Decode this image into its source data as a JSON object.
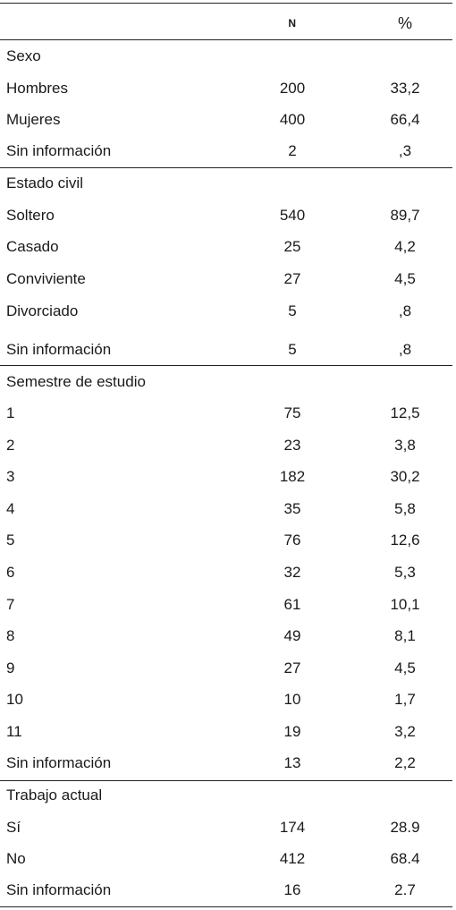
{
  "header": {
    "n": "N",
    "pct": "%"
  },
  "sections": [
    {
      "title": "Sexo",
      "rows": [
        {
          "label": "Hombres",
          "n": "200",
          "pct": "33,2"
        },
        {
          "label": "Mujeres",
          "n": "400",
          "pct": "66,4"
        },
        {
          "label": "Sin información",
          "n": "2",
          "pct": ",3"
        }
      ]
    },
    {
      "title": "Estado civil",
      "rows": [
        {
          "label": "Soltero",
          "n": "540",
          "pct": "89,7"
        },
        {
          "label": "Casado",
          "n": "25",
          "pct": "4,2"
        },
        {
          "label": "Conviviente",
          "n": "27",
          "pct": "4,5"
        },
        {
          "label": "Divorciado",
          "n": "5",
          "pct": ",8"
        },
        {
          "label": "Sin información",
          "n": "5",
          "pct": ",8"
        }
      ]
    },
    {
      "title": "Semestre de estudio",
      "rows": [
        {
          "label": "1",
          "n": "75",
          "pct": "12,5"
        },
        {
          "label": "2",
          "n": "23",
          "pct": "3,8"
        },
        {
          "label": "3",
          "n": "182",
          "pct": "30,2"
        },
        {
          "label": "4",
          "n": "35",
          "pct": "5,8"
        },
        {
          "label": "5",
          "n": "76",
          "pct": "12,6"
        },
        {
          "label": "6",
          "n": "32",
          "pct": "5,3"
        },
        {
          "label": "7",
          "n": "61",
          "pct": "10,1"
        },
        {
          "label": "8",
          "n": "49",
          "pct": "8,1"
        },
        {
          "label": "9",
          "n": "27",
          "pct": "4,5"
        },
        {
          "label": "10",
          "n": "10",
          "pct": "1,7"
        },
        {
          "label": "11",
          "n": "19",
          "pct": "3,2"
        },
        {
          "label": "Sin información",
          "n": "13",
          "pct": "2,2"
        }
      ]
    },
    {
      "title": "Trabajo actual",
      "rows": [
        {
          "label": "Sí",
          "n": "174",
          "pct": "28.9"
        },
        {
          "label": "No",
          "n": "412",
          "pct": "68.4"
        },
        {
          "label": "Sin información",
          "n": "16",
          "pct": "2.7"
        }
      ]
    }
  ]
}
